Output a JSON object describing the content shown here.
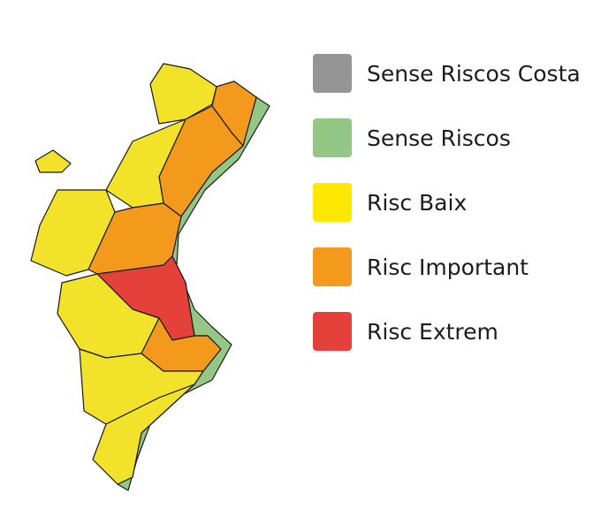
{
  "legend": [
    {
      "label": "Sense Riscos Costa",
      "color": "#959595"
    },
    {
      "label": "Sense Riscos",
      "color": "#94c786"
    },
    {
      "label": "Risc Baix",
      "color": "#ffe800"
    },
    {
      "label": "Risc Important",
      "color": "#f39a1d"
    },
    {
      "label": "Risc Extrem",
      "color": "#e5413b"
    }
  ],
  "map": {
    "regions": [
      {
        "level": "Risc Baix",
        "color": "#f2e22a"
      },
      {
        "level": "Risc Important",
        "color": "#f39a1d"
      },
      {
        "level": "Risc Extrem",
        "color": "#e5413b"
      },
      {
        "level": "Sense Riscos",
        "color": "#94c786"
      }
    ]
  }
}
